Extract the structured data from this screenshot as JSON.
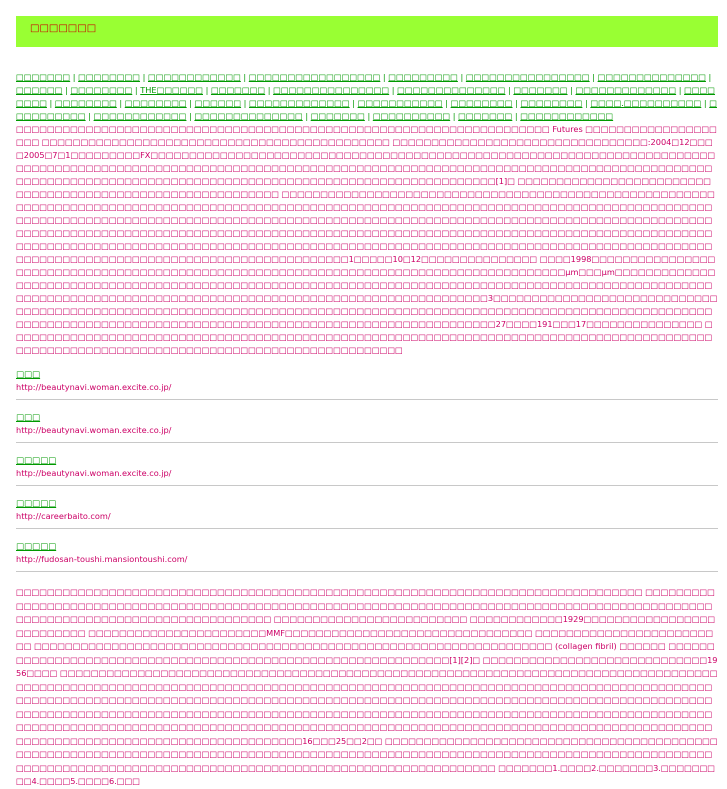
{
  "header": {
    "title": "□□□□□□□"
  },
  "links": [
    "□□□□□□□",
    "□□□□□□□□",
    "□□□□□□□□□□□□",
    "□□□□□□□□□□□□□□□□□",
    "□□□□□□□□□",
    "□□□□□□□□□□□□□□□□",
    "□□□□□□□□□□□□□□",
    "□□□□□□",
    "□□□□□□□□",
    "THE□□□□□□",
    "□□□□□□□",
    "□□□□□□□□□□□□□□□",
    "□□□□□□□□□□□□□□",
    "□□□□□□□",
    "□□□□□□□□□□□□□",
    "□□□□□□□□",
    "□□□□□□□□",
    "□□□□□□□□",
    "□□□□□□",
    "□□□□□□□□□□□□□",
    "□□□□□□□□□□□",
    "□□□□□□□□",
    "□□□□□□□□",
    "□□□□.□□□□□□□□□□",
    "□□□□□□□□□□",
    "□□□□□□□□□□□□",
    "□□□□□□□□□□□□□□",
    "□□□□□□□",
    "□□□□□□□□□□",
    "□□□□□□□",
    "□□□□□□□□□□□□"
  ],
  "paragraph1": "□□□□□□□□□□□□□□□□□□□□□□□□□□□□□□□□□□□□□□□□□□□□□□□□□□□□□□□□□□□□□□□□□□□□□ Futures □□□□□□□□□□□□□□□□□□□□ □□□□□□□□□□□□□□□□□□□□□□□□□□□□□□□□□□□□□□□□□□□□□ □□□□□□□□□□□□□□□□□□□□□□□□□□□□□□□□□:2004□12□□□□2005□7□1□□□□□□□□□FX□□□□□□□□□□□□□□□□□□□□□□□□□□□□□□□□□□□□□□□□□□□□□□□□□□□□□□□□□□□□□□□□□□□□□□□□□□□□□□□□□□□□□□□□□□□□□□□□□□□□□□□□□□□□□□□□□□□□□□□□□□□□□□□□□□□□□□□□□□□□□□□□□□□□□□□□□□□□□□□□□□□ □□□□□□□□□□□□□□□□□□□□□□□□□□□□□□□□□□□□□□□□□□□□□□□□□□□□□□□□□□□□□□[1]□ □□□□□□□□□□□□□□□□□□□□□□□□□□□□□□□□□□□□□□□□□□□□□□□□□□□□□□□□□□□ □□□□□□□□□□□□□□□□□□□□□□□□□□□□□□□□□□□□□□□□□□□□□□□□□□□□□□□□□□□□□□□□□□□□□□□□□□□□□□□□□□□□□□□□□□□□□□□□□□□□□□□□□□□□□□□□□□□□□□□□□□□□□□□□□□□□□□□□□□□□□□□□□□□□□□□□□□□□□□□□□□□□□□□□□□□□□□□□□□□□□□□□□□□□□□□□□□□□□□□□□□□□□□□□□□□□□□□□□□□□□□□□□□□□□□□□□□□□□□□□□□□□□□□□□□□□□□□□□□□□□□□□□□□□□□□□□□□□□□□□□□□□□□□□□□□□□□□□□□□□□□□□□□□□□□□□□□□□□□□□□□□□□□□□□□□□□□□□□□□□□□□□□□□□□□□□□□□□□□□□□□□□□□□□□□□□□□□□□□□□□□□□□□□□□□□□□□□□□□□□□□□□□□□□□□□□□□□□□□□□□□□□□□□□□□□□□□□□□□□□□□□□□□□□□□□□□□□□□□□1□□□□□10□12□□□□□□□□□□□□□□□ □□□□1998□□□□□□□□□□□□□□□□□□□□□□□□□□□□□□□□□□□□□□□□□□□□□□□□□□□□□□□□□□□□□□□□□□□□□□□□□□□□□□□□□□□□□□□µm□□□µm□□□□□□□□□□□□□□□□□□□□□□□□□□□□□□□□□□□□□□□□□□□□□□□□□□□□□□□□□□□□□□□□□□□□□□□□□□□□□□□□□□□□□□□□□□□□□□□□□□□□□□□□□□□□□□□□□□□□□□□□□□□□□□□□□□□□□□□□□□□□□□□□□□□□□□□□□□□□□□□□□□□□3□□□□□□□□□□□□□□□□□□□□□□□□□□□□□□□□□□□□□□□□□□□□□□□□□□□□□□□□□□□□□□□□□□□□□□□□□□□□□□□□□□□□□□□□□□□□□□□□□□□□□□□□□□□□□□□□□□□□□□□□□□□□□□□□□□□□□□□□□□□□□□□□□□□□□□□□□□□□□□□□□□□□□□□□□□□□□□□□□□□□□27□□□□191□□□17□□□□□□□□□□□□□□□ □□□□□□□□□□□□□□□□□□□□□□□□□□□□□□□□□□□□□□□□□□□□□□□□□□□□□□□□□□□□□□□□□□□□□□□□□□□□□□□□□□□□□□□□□□□□□□□□□□□□□□□□□□□□□□□□□□□□□□□□□□□□□□□□□□□□□□□□□□□□□",
  "entries": [
    {
      "title": "□□□",
      "url": "http://beautynavi.woman.excite.co.jp/"
    },
    {
      "title": "□□□",
      "url": "http://beautynavi.woman.excite.co.jp/"
    },
    {
      "title": "□□□□□",
      "url": "http://beautynavi.woman.excite.co.jp/"
    },
    {
      "title": "□□□□□",
      "url": "http://careerbaito.com/"
    },
    {
      "title": "□□□□□",
      "url": "http://fudosan-toushi.mansiontoushi.com/"
    }
  ],
  "paragraph2": "□□□□□□□□□□□□□□□□□□□□□□□□□□□□□□□□□□□□□□□□□□□□□□□□□□□□□□□□□□□□□□□□□□□□□□□□□□□□□□□□□ □□□□□□□□□□□□□□□□□□□□□□□□□□□□□□□□□□□□□□□□□□□□□□□□□□□□□□□□□□□□□□□□□□□□□□□□□□□□□□□□□□□□□□□□□□□□□□□□□□□□□□□□□□□□□□□□□□□□□□□□□□□□□□□□□□□□ □□□□□□□□□□□□□□□□□□□□□□□□□ □□□□□□□□□□□□1929□□□□□□□□□□□□□□□□□□□□□□□□□□ □□□□□□□□□□□□□□□□□□□□□□□MMF□□□□□□□□□□□□□□□□□□□□□□□□□□□□□□□□ □□□□□□□□□□□□□□□□□□□□□□□□□ □□□□□□□□□□□□□□□□□□□□□□□□□□□□□□□□□□□□□□□□□□□□□□□□□□□□□□□□□□□□□□□□□□□ (collagen fibril) □□□□□□ □□□□□□□□□□□□□□□□□□□□□□□□□□□□□□□□□□□□□□□□□□□□□□□□□□□□□□□□□□□□□□[1][2]□ □□□□□□□□□□□□□□□□□□□□□□□□□□□□□1956□□□□ □□□□□□□□□□□□□□□□□□□□□□□□□□□□□□□□□□□□□□□□□□□□□□□□□□□□□□□□□□□□□□□□□□□□□□□□□□□□□□□□□□□□□□□□□□□□□□□□□□□□□□□□□□□□□□□□□□□□□□□□□□□□□□□□□□□□□□□□□□□□□□□□□□□□□□□□□□□□□□□□□□□□□□□□□□□□□□□□□□□□□□□□□□□□□□□□□□□□□□□□□□□□□□□□□□□□□□□□□□□□□□□□□□□□□□□□□□□□□□□□□□□□□□□□□□□□□□□□□□□□□□□□□□□□□□□□□□□□□□□□□□□□□□□□□□□□□□□□□□□□□□□□□□□□□□□□□□□□□□□□□□□□□□□□□□□□□□□□□□□□□□□□□□□□□□□□□□□□□□□□□□□□□□□□□□□□□□□□□□□□□□□□□□□□□□□□□□□□□□□□□□□□□□□□□□□□□□□□□□□□□□□□□□□□□□□□□□□□□□□□□□□□□□□□□□□□□□□□□□□□□□□□□□□□□□□□□□□□□□□□□□16□□□25□□2□□ □□□□□□□□□□□□□□□□□□□□□□□□□□□□□□□□□□□□□□□□□□□□□□□□□□□□□□□□□□□□□□□□□□□□□□□□□□□□□□□□□□□□□□□□□□□□□□□□□□□□□□□□□□□□□□□□□□□□□□□□□□□□□□□□□□□□□□□□□□□□□□□□□□□□□□□□□□□□□□□□□□□□□□□□□□□□□□□□□□□□□□□□□□□□□□□□□□□ □□□□□□□1.□□□□2.□□□□□□□3.□□□□□□□□□4.□□□□5.□□□□6.□□□"
}
